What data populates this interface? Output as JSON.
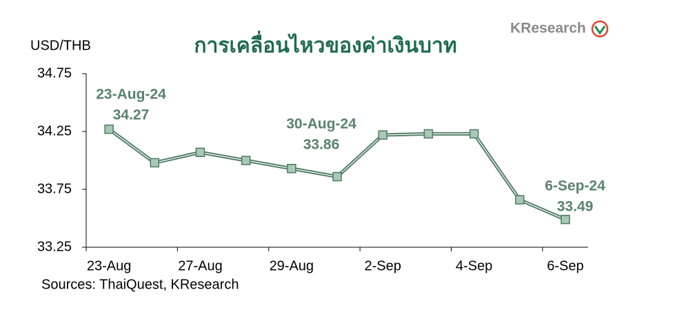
{
  "chart_data": {
    "type": "line",
    "title": "การเคลื่อนไหวของค่าเงินบาท",
    "y_axis_label": "USD/THB",
    "logo": "KResearch",
    "source": "Sources: ThaiQuest, KResearch",
    "categories": [
      "23-Aug",
      null,
      "27-Aug",
      null,
      "29-Aug",
      null,
      "2-Sep",
      null,
      "4-Sep",
      null,
      "6-Sep"
    ],
    "values": [
      34.27,
      33.98,
      34.07,
      34.0,
      33.93,
      33.86,
      34.22,
      34.23,
      34.23,
      33.66,
      33.49
    ],
    "color": "#4e7a64",
    "marker_color": "#a9c9b4",
    "annotations": [
      "23-Aug-24",
      "30-Aug-24",
      "6-Sep-24"
    ],
    "ylim": [
      33.25,
      34.75
    ],
    "yticks": [
      33.25,
      33.75,
      34.25,
      34.75
    ]
  }
}
